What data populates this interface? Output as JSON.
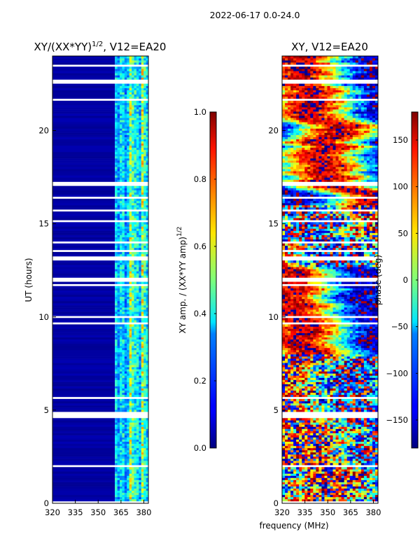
{
  "chart_data": [
    {
      "type": "heatmap",
      "panel": "amplitude",
      "title": "XY/(XX*YY)",
      "title_superscript": "1/2",
      "title_suffix": ", V12=EA20",
      "xlabel": "",
      "ylabel": "UT (hours)",
      "xlim": [
        320,
        383
      ],
      "ylim": [
        0,
        24
      ],
      "xticks": [
        "320",
        "335",
        "350",
        "365",
        "380"
      ],
      "xtick_values": [
        320,
        335,
        350,
        365,
        380
      ],
      "yticks": [
        "0",
        "5",
        "10",
        "15",
        "20"
      ],
      "ytick_values": [
        0,
        5,
        10,
        15,
        20
      ],
      "colormap": "jet",
      "colorbar": {
        "label": "XY amp. / (XX*YY amp)",
        "label_superscript": "1/2",
        "range": [
          0.0,
          1.0
        ],
        "ticks": [
          "0.0",
          "0.2",
          "0.4",
          "0.6",
          "0.8",
          "1.0"
        ],
        "tick_values": [
          0.0,
          0.2,
          0.4,
          0.6,
          0.8,
          1.0
        ]
      },
      "description_values": {
        "low_band_mhz": [
          320,
          361
        ],
        "low_band_level": 0.02,
        "high_band_mhz": [
          361,
          383
        ],
        "high_band_level_range": [
          0.15,
          0.75
        ]
      }
    },
    {
      "type": "heatmap",
      "panel": "phase",
      "title": "XY, V12=EA20",
      "xlabel": "frequency (MHz)",
      "ylabel": "",
      "xlim": [
        320,
        383
      ],
      "ylim": [
        0,
        24
      ],
      "xticks": [
        "320",
        "335",
        "350",
        "365",
        "380"
      ],
      "xtick_values": [
        320,
        335,
        350,
        365,
        380
      ],
      "yticks": [
        "0",
        "5",
        "10",
        "15",
        "20"
      ],
      "ytick_values": [
        0,
        5,
        10,
        15,
        20
      ],
      "colormap": "jet",
      "colorbar": {
        "label": "phase (deg)",
        "range": [
          -180,
          180
        ],
        "ticks": [
          "−150",
          "−100",
          "−50",
          "0",
          "50",
          "100",
          "150"
        ],
        "tick_values": [
          -150,
          -100,
          -50,
          0,
          50,
          100,
          150
        ]
      }
    }
  ],
  "figure": {
    "suptitle": "2022-06-17 0.0-24.0"
  }
}
